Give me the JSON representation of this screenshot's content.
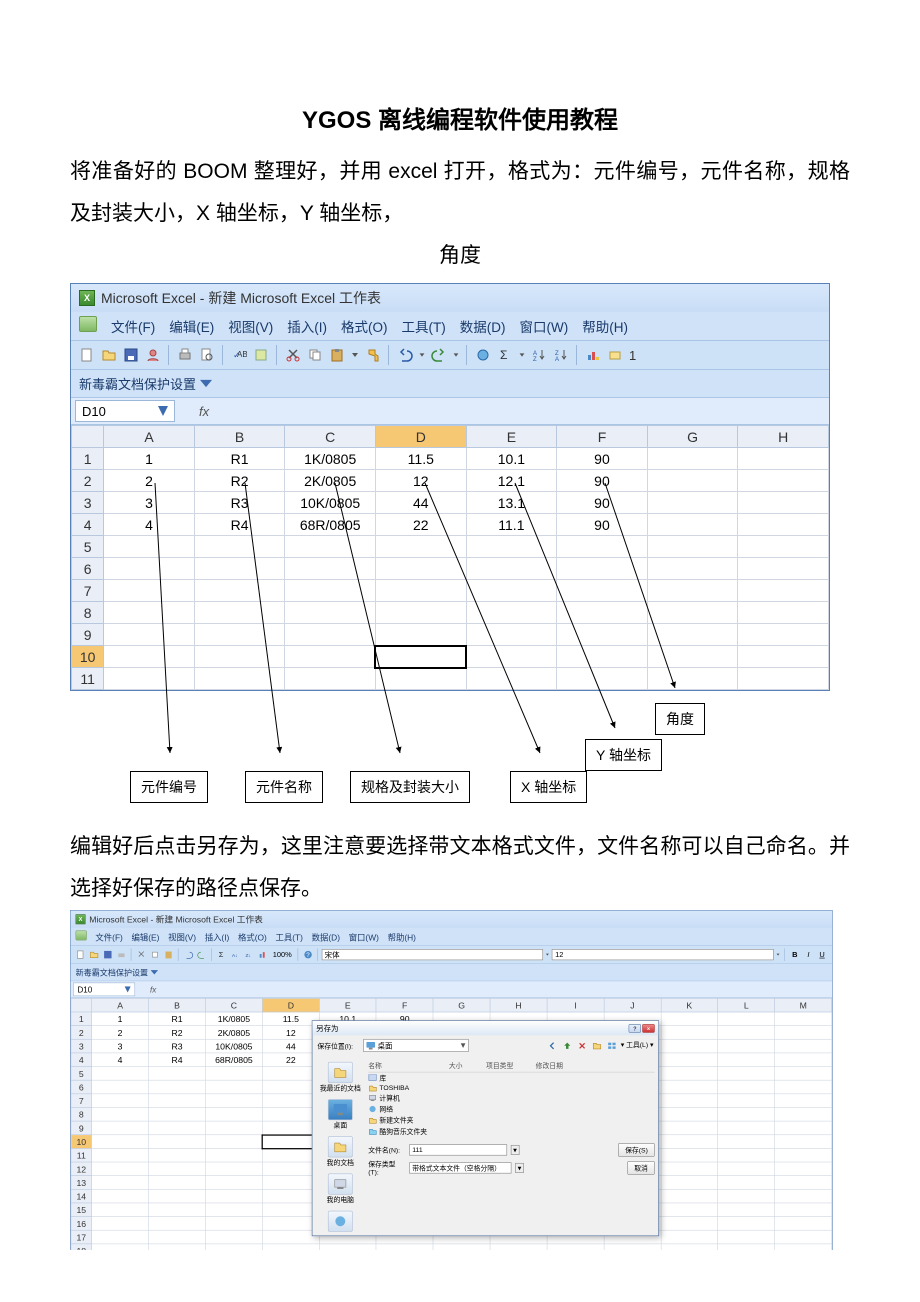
{
  "doc": {
    "title": "YGOS 离线编程软件使用教程",
    "intro1": "将准备好的 BOOM 整理好，并用 excel 打开，格式为：元件编号，元件名称，规格及封装大小，X 轴坐标，Y 轴坐标，",
    "intro2": "角度",
    "para2": "编辑好后点击另存为，这里注意要选择带文本格式文件，文件名称可以自己命名。并选择好保存的路径点保存。"
  },
  "excel": {
    "title": "Microsoft Excel - 新建 Microsoft Excel 工作表",
    "menus": [
      "文件(F)",
      "编辑(E)",
      "视图(V)",
      "插入(I)",
      "格式(O)",
      "工具(T)",
      "数据(D)",
      "窗口(W)",
      "帮助(H)"
    ],
    "protect": "新毒霸文档保护设置",
    "namebox": "D10",
    "fx": "fx",
    "columns": [
      "A",
      "B",
      "C",
      "D",
      "E",
      "F",
      "G",
      "H"
    ],
    "sel_col_index": 3,
    "sel_row_index": 9,
    "rows": [
      [
        "1",
        "R1",
        "1K/0805",
        "11.5",
        "10.1",
        "90",
        "",
        ""
      ],
      [
        "2",
        "R2",
        "2K/0805",
        "12",
        "12.1",
        "90",
        "",
        ""
      ],
      [
        "3",
        "R3",
        "10K/0805",
        "44",
        "13.1",
        "90",
        "",
        ""
      ],
      [
        "4",
        "R4",
        "68R/0805",
        "22",
        "11.1",
        "90",
        "",
        ""
      ],
      [
        "",
        "",
        "",
        "",
        "",
        "",
        "",
        ""
      ],
      [
        "",
        "",
        "",
        "",
        "",
        "",
        "",
        ""
      ],
      [
        "",
        "",
        "",
        "",
        "",
        "",
        "",
        ""
      ],
      [
        "",
        "",
        "",
        "",
        "",
        "",
        "",
        ""
      ],
      [
        "",
        "",
        "",
        "",
        "",
        "",
        "",
        ""
      ],
      [
        "",
        "",
        "",
        "",
        "",
        "",
        "",
        ""
      ],
      [
        "",
        "",
        "",
        "",
        "",
        "",
        "",
        ""
      ]
    ]
  },
  "annotations": {
    "a1": "元件编号",
    "a2": "元件名称",
    "a3": "规格及封装大小",
    "a4": "X 轴坐标",
    "a5": "Y 轴坐标",
    "a6": "角度"
  },
  "excel2": {
    "rows_visible": 24,
    "extra_cols": [
      "A",
      "B",
      "C",
      "D",
      "E",
      "F",
      "G",
      "H",
      "I",
      "J",
      "K",
      "L",
      "M"
    ],
    "font_label": "宋体",
    "font_size": "12",
    "zoom": "100%"
  },
  "dialog": {
    "title": "另存为",
    "loc_label": "保存位置(I):",
    "loc_value": "桌面",
    "tool_label": "工具(L)",
    "list_headers": [
      "名称",
      "大小",
      "项目类型",
      "修改日期"
    ],
    "places": [
      "我最近的文档",
      "桌面",
      "我的文档",
      "我的电脑",
      ""
    ],
    "files": [
      "库",
      "TOSHIBA",
      "计算机",
      "网络",
      "新建文件夹",
      "酷狗音乐文件夹"
    ],
    "filename_label": "文件名(N):",
    "filename_value": "111",
    "filetype_label": "保存类型(T):",
    "filetype_value": "带格式文本文件（空格分隔）",
    "save_btn": "保存(S)",
    "cancel_btn": "取消"
  },
  "colors": {
    "excel_bg": "#cfe2f8",
    "sel_header": "#f7c873",
    "grid_border": "#d0d7e2"
  }
}
